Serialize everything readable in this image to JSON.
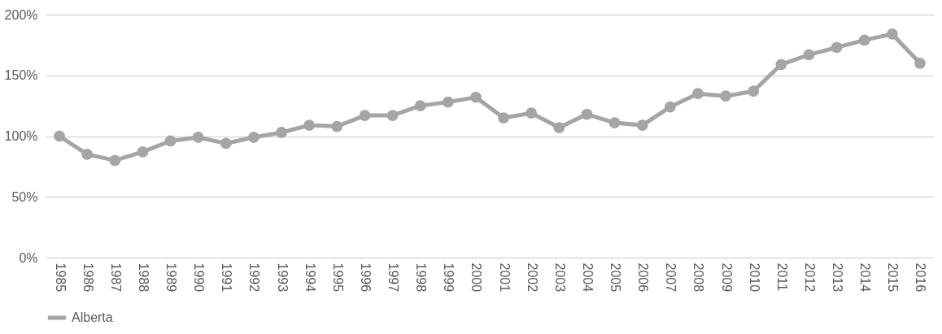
{
  "chart_data": {
    "type": "line",
    "categories": [
      "1985",
      "1986",
      "1987",
      "1988",
      "1989",
      "1990",
      "1991",
      "1992",
      "1993",
      "1994",
      "1995",
      "1996",
      "1997",
      "1998",
      "1999",
      "2000",
      "2001",
      "2002",
      "2003",
      "2004",
      "2005",
      "2006",
      "2007",
      "2008",
      "2009",
      "2010",
      "2011",
      "2012",
      "2013",
      "2014",
      "2015",
      "2016"
    ],
    "series": [
      {
        "name": "Alberta",
        "color": "#a5a5a5",
        "values": [
          100,
          85,
          80,
          87,
          96,
          99,
          94,
          99,
          103,
          109,
          108,
          117,
          117,
          125,
          128,
          132,
          115,
          119,
          107,
          118,
          111,
          109,
          124,
          135,
          133,
          137,
          159,
          167,
          173,
          179,
          184,
          160
        ]
      }
    ],
    "ylim": [
      0,
      200
    ],
    "yticks": [
      {
        "value": 0,
        "label": "0%"
      },
      {
        "value": 50,
        "label": "50%"
      },
      {
        "value": 100,
        "label": "100%"
      },
      {
        "value": 150,
        "label": "150%"
      },
      {
        "value": 200,
        "label": "200%"
      }
    ],
    "grid": "y",
    "legend": "bottom",
    "marker": "circle",
    "line_style": "solid"
  }
}
